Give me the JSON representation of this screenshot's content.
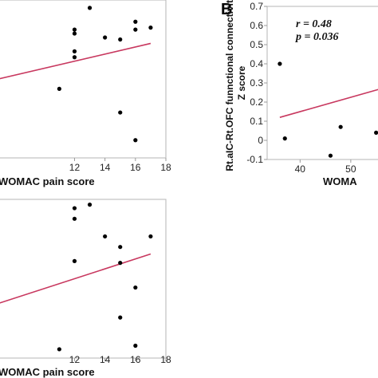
{
  "chart_data": [
    {
      "type": "scatter",
      "xlabel": "WOMAC pain score",
      "xticks": [
        "12",
        "14",
        "16",
        "18"
      ],
      "x_range": [
        7,
        18
      ],
      "y_range": [
        -0.05,
        0.75
      ],
      "points": [
        {
          "x": 11,
          "y": 0.3
        },
        {
          "x": 12,
          "y": 0.6
        },
        {
          "x": 12,
          "y": 0.58
        },
        {
          "x": 12,
          "y": 0.49
        },
        {
          "x": 12,
          "y": 0.46
        },
        {
          "x": 13,
          "y": 0.71
        },
        {
          "x": 14,
          "y": 0.56
        },
        {
          "x": 15,
          "y": 0.55
        },
        {
          "x": 15,
          "y": 0.18
        },
        {
          "x": 16,
          "y": 0.64
        },
        {
          "x": 16,
          "y": 0.6
        },
        {
          "x": 16,
          "y": 0.04
        },
        {
          "x": 17,
          "y": 0.61
        }
      ],
      "fit_line": {
        "x": [
          7,
          17
        ],
        "y": [
          0.35,
          0.53
        ],
        "color": "#c8385f"
      }
    },
    {
      "type": "scatter",
      "panel_label": "B",
      "xlabel": "WOMA",
      "ylabel": "Rt.aIC-Rt.OFC funnctional connectivity Z score",
      "yticks": [
        "-0.1",
        "0",
        "0.1",
        "0.2",
        "0.3",
        "0.4",
        "0.5",
        "0.6",
        "0.7"
      ],
      "xticks": [
        "40",
        "50"
      ],
      "x_range": [
        33.5,
        56
      ],
      "y_range": [
        -0.1,
        0.7
      ],
      "annotations": [
        "r = 0.48",
        "p = 0.036"
      ],
      "points": [
        {
          "x": 36,
          "y": 0.4
        },
        {
          "x": 37,
          "y": 0.01
        },
        {
          "x": 46,
          "y": -0.08
        },
        {
          "x": 48,
          "y": 0.07
        },
        {
          "x": 55,
          "y": 0.04
        }
      ],
      "fit_line": {
        "x": [
          36,
          56
        ],
        "y": [
          0.12,
          0.27
        ],
        "color": "#c8385f"
      }
    },
    {
      "type": "scatter",
      "xlabel": "WOMAC pain score",
      "xticks": [
        "12",
        "14",
        "16",
        "18"
      ],
      "x_range": [
        7,
        18
      ],
      "y_range": [
        -0.15,
        0.75
      ],
      "points": [
        {
          "x": 11,
          "y": -0.1
        },
        {
          "x": 12,
          "y": 0.7
        },
        {
          "x": 12,
          "y": 0.64
        },
        {
          "x": 12,
          "y": 0.4
        },
        {
          "x": 13,
          "y": 0.72
        },
        {
          "x": 14,
          "y": 0.54
        },
        {
          "x": 15,
          "y": 0.48
        },
        {
          "x": 15,
          "y": 0.39
        },
        {
          "x": 15,
          "y": 0.08
        },
        {
          "x": 16,
          "y": 0.25
        },
        {
          "x": 16,
          "y": -0.08
        },
        {
          "x": 17,
          "y": 0.54
        }
      ],
      "fit_line": {
        "x": [
          7,
          17
        ],
        "y": [
          0.16,
          0.44
        ],
        "color": "#c8385f"
      }
    }
  ]
}
